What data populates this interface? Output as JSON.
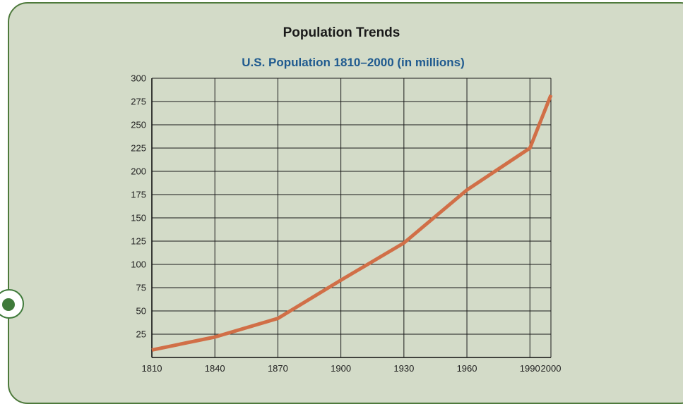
{
  "page": {
    "title": "Population Trends"
  },
  "colors": {
    "panel_background": "#d3dbc8",
    "panel_border": "#4e7a3c",
    "line": "#d16f47",
    "chart_title": "#1f5a8f",
    "marker": "#3f7a3a"
  },
  "chart_data": {
    "type": "line",
    "title": "U.S. Population 1810–2000 (in millions)",
    "xlabel": "",
    "ylabel": "",
    "x": [
      1810,
      1840,
      1870,
      1900,
      1930,
      1960,
      1990,
      2000
    ],
    "series": [
      {
        "values": [
          8,
          22,
          42,
          83,
          123,
          180,
          225,
          282
        ]
      }
    ],
    "xlim": [
      1810,
      2000
    ],
    "ylim": [
      0,
      300
    ],
    "x_ticks": [
      1810,
      1840,
      1870,
      1900,
      1930,
      1960,
      1990,
      2000
    ],
    "x_tick_labels": [
      "1810",
      "1840",
      "1870",
      "1900",
      "1930",
      "1960",
      "1990",
      "2000"
    ],
    "y_ticks": [
      25,
      50,
      75,
      100,
      125,
      150,
      175,
      200,
      225,
      250,
      275,
      300
    ],
    "y_tick_labels": [
      "25",
      "50",
      "75",
      "100",
      "125",
      "150",
      "175",
      "200",
      "225",
      "250",
      "275",
      "300"
    ],
    "grid": true,
    "legend": "none"
  }
}
